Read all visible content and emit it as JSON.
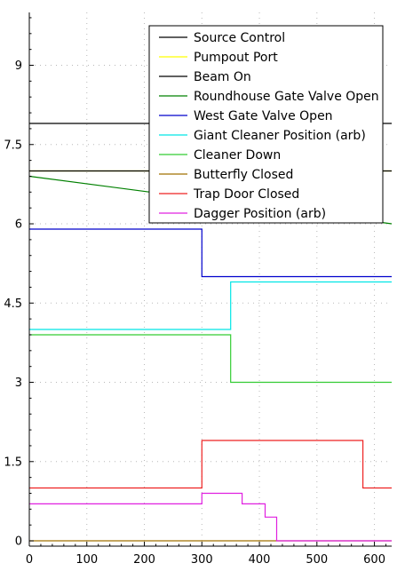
{
  "chart_data": {
    "type": "line",
    "step": true,
    "title": "",
    "xlabel": "",
    "ylabel": "",
    "xlim": [
      0,
      630
    ],
    "ylim": [
      -0.1,
      10
    ],
    "x_ticks": [
      0,
      100,
      200,
      300,
      400,
      500,
      600
    ],
    "x_tick_labels": [
      "0",
      "100",
      "200",
      "300",
      "400",
      "500",
      "600"
    ],
    "y_ticks": [
      0,
      1.5,
      3,
      4.5,
      6,
      7.5,
      9
    ],
    "y_tick_labels": [
      "0",
      "1.5",
      "3",
      "4.5",
      "6",
      "7.5",
      "9"
    ],
    "grid": "dotted",
    "legend_position": "top-right",
    "series": [
      {
        "name": "Source Control",
        "color": "#000000",
        "x": [
          0,
          630
        ],
        "y": [
          7.9,
          7.9
        ]
      },
      {
        "name": "Pumpout Port",
        "color": "#ffff00",
        "x": [
          0,
          630
        ],
        "y": [
          7.0,
          7.0
        ]
      },
      {
        "name": "Beam On",
        "color": "#000000",
        "x": [
          0,
          630
        ],
        "y": [
          7.0,
          7.0
        ]
      },
      {
        "name": "Roundhouse Gate Valve Open",
        "color": "#008000",
        "x": [
          0,
          630
        ],
        "y": [
          6.9,
          6.0
        ]
      },
      {
        "name": "West Gate Valve Open",
        "color": "#0000cc",
        "x": [
          0,
          300,
          300,
          630
        ],
        "y": [
          5.9,
          5.9,
          5.0,
          5.0
        ]
      },
      {
        "name": "Giant Cleaner Position (arb)",
        "color": "#00e5e5",
        "x": [
          0,
          350,
          350,
          630
        ],
        "y": [
          4.0,
          4.0,
          4.9,
          4.9
        ]
      },
      {
        "name": "Cleaner Down",
        "color": "#33cc33",
        "x": [
          0,
          350,
          350,
          630
        ],
        "y": [
          3.9,
          3.9,
          3.0,
          3.0
        ]
      },
      {
        "name": "Butterfly Closed",
        "color": "#a07000",
        "x": [
          0,
          630
        ],
        "y": [
          0.0,
          0.0
        ]
      },
      {
        "name": "Trap Door Closed",
        "color": "#ee2222",
        "x": [
          0,
          300,
          300,
          580,
          580,
          630
        ],
        "y": [
          1.0,
          1.0,
          1.9,
          1.9,
          1.0,
          1.0
        ]
      },
      {
        "name": "Dagger Position (arb)",
        "color": "#e020e0",
        "x": [
          0,
          300,
          300,
          370,
          370,
          410,
          410,
          430,
          430,
          630
        ],
        "y": [
          0.7,
          0.7,
          0.9,
          0.9,
          0.7,
          0.7,
          0.45,
          0.45,
          0.0,
          0.0
        ]
      }
    ]
  }
}
